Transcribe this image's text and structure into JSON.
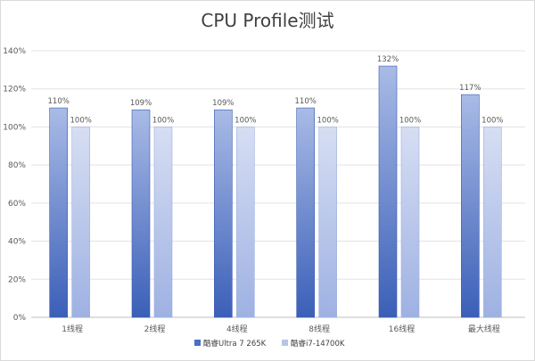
{
  "chart_data": {
    "type": "bar",
    "title": "CPU Profile测试",
    "categories": [
      "1线程",
      "2线程",
      "4线程",
      "8线程",
      "16线程",
      "最大线程"
    ],
    "series": [
      {
        "name": "酷睿Ultra 7 265K",
        "values": [
          110,
          109,
          109,
          110,
          132,
          117
        ],
        "labels": [
          "110%",
          "109%",
          "109%",
          "110%",
          "132%",
          "117%"
        ],
        "color": "#4a6fc4"
      },
      {
        "name": "酷睿i7-14700K",
        "values": [
          100,
          100,
          100,
          100,
          100,
          100
        ],
        "labels": [
          "100%",
          "100%",
          "100%",
          "100%",
          "100%",
          "100%"
        ],
        "color": "#b7c5e8"
      }
    ],
    "ylim": [
      0,
      140
    ],
    "yticks": [
      0,
      20,
      40,
      60,
      80,
      100,
      120,
      140
    ],
    "ytick_labels": [
      "0%",
      "20%",
      "40%",
      "60%",
      "80%",
      "100%",
      "120%",
      "140%"
    ],
    "grid": true,
    "legend_position": "bottom"
  }
}
